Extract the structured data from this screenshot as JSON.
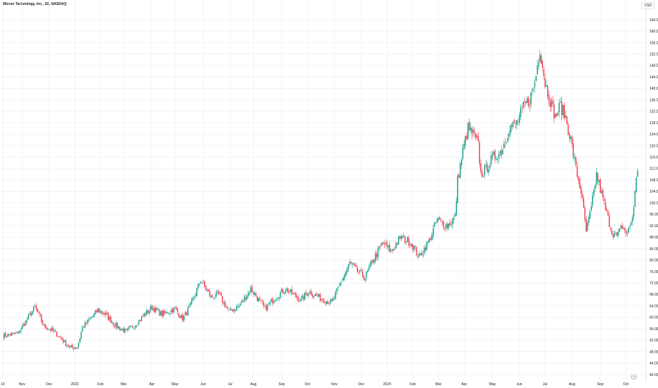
{
  "header": {
    "title": "Micron Technology, Inc., 1D, NASDAQ",
    "currency": "USD"
  },
  "colors": {
    "up": "#089981",
    "down": "#f23645",
    "grid": "#f0f3fa",
    "axis_text": "#131722"
  },
  "chart_data": {
    "type": "candlestick",
    "title": "Micron Technology, Inc., 1D, NASDAQ",
    "y_unit": "USD",
    "ylim": [
      40,
      164
    ],
    "y_ticks": [
      "40.00",
      "44.00",
      "48.00",
      "52.00",
      "56.00",
      "60.00",
      "64.00",
      "68.00",
      "72.00",
      "76.00",
      "80.00",
      "84.00",
      "88.00",
      "92.00",
      "96.00",
      "100.00",
      "104.00",
      "108.00",
      "112.00",
      "116.00",
      "120.00",
      "124.00",
      "128.00",
      "132.00",
      "136.00",
      "140.00",
      "144.00",
      "148.00",
      "152.00",
      "156.00",
      "160.00",
      "164.00"
    ],
    "x_ticks": [
      {
        "label": "10",
        "idx": 0
      },
      {
        "label": "Nov",
        "idx": 15
      },
      {
        "label": "Dec",
        "idx": 36
      },
      {
        "label": "2023",
        "idx": 56
      },
      {
        "label": "Feb",
        "idx": 76
      },
      {
        "label": "Mar",
        "idx": 94
      },
      {
        "label": "Apr",
        "idx": 116
      },
      {
        "label": "May",
        "idx": 134
      },
      {
        "label": "Jun",
        "idx": 156
      },
      {
        "label": "Jul",
        "idx": 177
      },
      {
        "label": "Aug",
        "idx": 195
      },
      {
        "label": "Sep",
        "idx": 217
      },
      {
        "label": "Oct",
        "idx": 237
      },
      {
        "label": "Nov",
        "idx": 258
      },
      {
        "label": "Dec",
        "idx": 279
      },
      {
        "label": "2024",
        "idx": 299
      },
      {
        "label": "Feb",
        "idx": 319
      },
      {
        "label": "Mar",
        "idx": 339
      },
      {
        "label": "Apr",
        "idx": 359
      },
      {
        "label": "May",
        "idx": 381
      },
      {
        "label": "Jun",
        "idx": 402
      },
      {
        "label": "Jul",
        "idx": 422
      },
      {
        "label": "Aug",
        "idx": 443
      },
      {
        "label": "Sep",
        "idx": 465
      },
      {
        "label": "Oct",
        "idx": 485
      }
    ],
    "path": [
      [
        0,
        53.5
      ],
      [
        12,
        54.5
      ],
      [
        25,
        63.5
      ],
      [
        32,
        57
      ],
      [
        40,
        55
      ],
      [
        52,
        49.5
      ],
      [
        58,
        49.5
      ],
      [
        62,
        56.5
      ],
      [
        74,
        62.5
      ],
      [
        80,
        61
      ],
      [
        88,
        57
      ],
      [
        96,
        55
      ],
      [
        104,
        58
      ],
      [
        116,
        63.5
      ],
      [
        124,
        61
      ],
      [
        134,
        63
      ],
      [
        140,
        59.5
      ],
      [
        146,
        64
      ],
      [
        154,
        73
      ],
      [
        162,
        67
      ],
      [
        168,
        68
      ],
      [
        176,
        62
      ],
      [
        184,
        64
      ],
      [
        193,
        70
      ],
      [
        204,
        63
      ],
      [
        212,
        67
      ],
      [
        220,
        70
      ],
      [
        232,
        66
      ],
      [
        238,
        69
      ],
      [
        246,
        67
      ],
      [
        256,
        65
      ],
      [
        264,
        73
      ],
      [
        270,
        79
      ],
      [
        276,
        76
      ],
      [
        282,
        74
      ],
      [
        288,
        80
      ],
      [
        296,
        86
      ],
      [
        302,
        83
      ],
      [
        310,
        88
      ],
      [
        318,
        86
      ],
      [
        324,
        81
      ],
      [
        332,
        87
      ],
      [
        338,
        94
      ],
      [
        346,
        92
      ],
      [
        352,
        95
      ],
      [
        354,
        108
      ],
      [
        358,
        118
      ],
      [
        362,
        126
      ],
      [
        366,
        124
      ],
      [
        370,
        120
      ],
      [
        372,
        110
      ],
      [
        376,
        112
      ],
      [
        382,
        116
      ],
      [
        388,
        118
      ],
      [
        394,
        126
      ],
      [
        400,
        128
      ],
      [
        406,
        134
      ],
      [
        410,
        136
      ],
      [
        414,
        142
      ],
      [
        418,
        154
      ],
      [
        422,
        142
      ],
      [
        426,
        136
      ],
      [
        430,
        130
      ],
      [
        434,
        134
      ],
      [
        438,
        130
      ],
      [
        442,
        122
      ],
      [
        446,
        112
      ],
      [
        450,
        104
      ],
      [
        454,
        90
      ],
      [
        458,
        98
      ],
      [
        462,
        110
      ],
      [
        466,
        103
      ],
      [
        470,
        96
      ],
      [
        474,
        90
      ],
      [
        478,
        88
      ],
      [
        482,
        92
      ],
      [
        486,
        89
      ],
      [
        490,
        95
      ],
      [
        494,
        112
      ]
    ],
    "annotations": [
      {
        "label": "high",
        "value": 157.5,
        "idx": 418
      },
      {
        "label": "low",
        "value": 47.5,
        "idx": 56
      }
    ]
  }
}
